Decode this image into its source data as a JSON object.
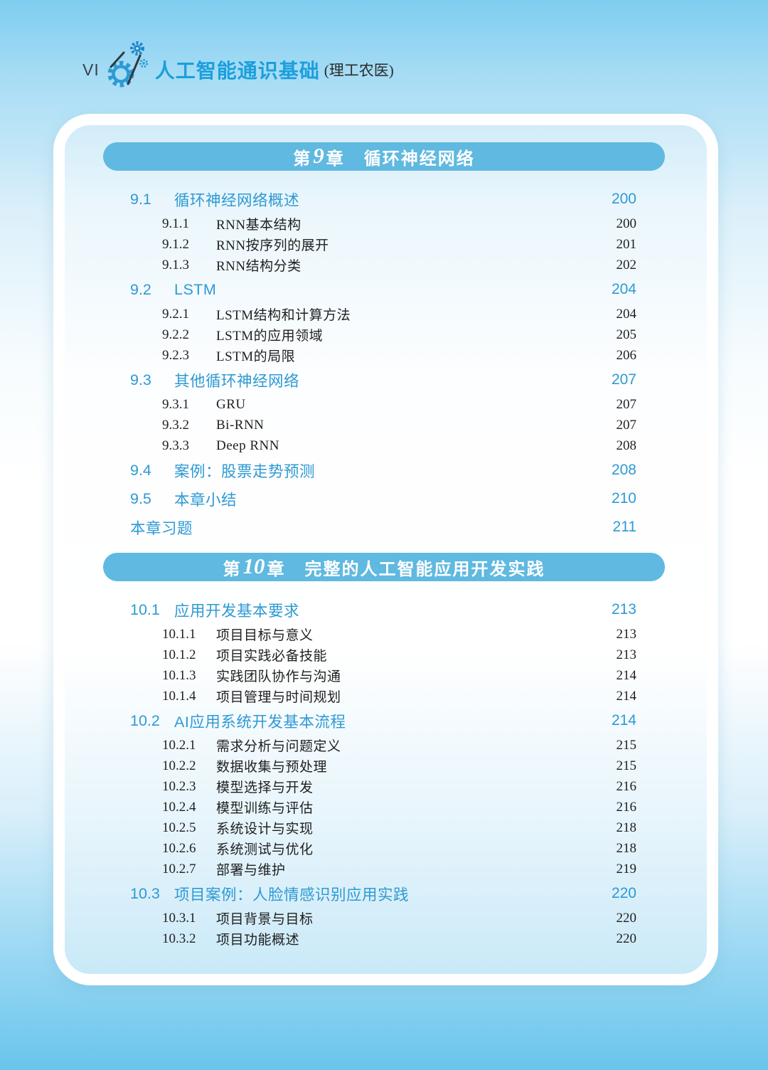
{
  "header": {
    "folio": "VI",
    "book_title": "人工智能通识基础",
    "book_subtitle": "(理工农医)",
    "logo": "gears-icon"
  },
  "colors": {
    "banner_blue": "#5FB9E0",
    "accent_blue": "#2E9AD3",
    "text_dark": "#1F1F1F",
    "header_title_blue": "#1C9FDC",
    "page_gradient_top": "#7ECDF0",
    "page_gradient_bottom": "#69C5EC",
    "card_border": "#FFFFFF"
  },
  "chapters": [
    {
      "banner": {
        "prefix": "第",
        "number": "9",
        "suffix": "章",
        "title": "循环神经网络"
      },
      "entries": [
        {
          "level": 1,
          "num": "9.1",
          "title": "循环神经网络概述",
          "page": "200"
        },
        {
          "level": 2,
          "num": "9.1.1",
          "title": "RNN基本结构",
          "page": "200"
        },
        {
          "level": 2,
          "num": "9.1.2",
          "title": "RNN按序列的展开",
          "page": "201"
        },
        {
          "level": 2,
          "num": "9.1.3",
          "title": "RNN结构分类",
          "page": "202"
        },
        {
          "level": 1,
          "num": "9.2",
          "title": "LSTM",
          "page": "204"
        },
        {
          "level": 2,
          "num": "9.2.1",
          "title": "LSTM结构和计算方法",
          "page": "204"
        },
        {
          "level": 2,
          "num": "9.2.2",
          "title": "LSTM的应用领域",
          "page": "205"
        },
        {
          "level": 2,
          "num": "9.2.3",
          "title": "LSTM的局限",
          "page": "206"
        },
        {
          "level": 1,
          "num": "9.3",
          "title": "其他循环神经网络",
          "page": "207"
        },
        {
          "level": 2,
          "num": "9.3.1",
          "title": "GRU",
          "page": "207"
        },
        {
          "level": 2,
          "num": "9.3.2",
          "title": "Bi-RNN",
          "page": "207"
        },
        {
          "level": 2,
          "num": "9.3.3",
          "title": "Deep RNN",
          "page": "208"
        },
        {
          "level": 1,
          "num": "9.4",
          "title": "案例：股票走势预测",
          "page": "208"
        },
        {
          "level": 1,
          "num": "9.5",
          "title": "本章小结",
          "page": "210"
        },
        {
          "level": 0,
          "num": "",
          "title": "本章习题",
          "page": "211"
        }
      ]
    },
    {
      "banner": {
        "prefix": "第",
        "number": "10",
        "suffix": "章",
        "title": "完整的人工智能应用开发实践"
      },
      "entries": [
        {
          "level": 1,
          "num": "10.1",
          "title": "应用开发基本要求",
          "page": "213"
        },
        {
          "level": 2,
          "num": "10.1.1",
          "title": "项目目标与意义",
          "page": "213"
        },
        {
          "level": 2,
          "num": "10.1.2",
          "title": "项目实践必备技能",
          "page": "213"
        },
        {
          "level": 2,
          "num": "10.1.3",
          "title": "实践团队协作与沟通",
          "page": "214"
        },
        {
          "level": 2,
          "num": "10.1.4",
          "title": "项目管理与时间规划",
          "page": "214"
        },
        {
          "level": 1,
          "num": "10.2",
          "title": "AI应用系统开发基本流程",
          "page": "214"
        },
        {
          "level": 2,
          "num": "10.2.1",
          "title": "需求分析与问题定义",
          "page": "215"
        },
        {
          "level": 2,
          "num": "10.2.2",
          "title": "数据收集与预处理",
          "page": "215"
        },
        {
          "level": 2,
          "num": "10.2.3",
          "title": "模型选择与开发",
          "page": "216"
        },
        {
          "level": 2,
          "num": "10.2.4",
          "title": "模型训练与评估",
          "page": "216"
        },
        {
          "level": 2,
          "num": "10.2.5",
          "title": "系统设计与实现",
          "page": "218"
        },
        {
          "level": 2,
          "num": "10.2.6",
          "title": "系统测试与优化",
          "page": "218"
        },
        {
          "level": 2,
          "num": "10.2.7",
          "title": "部署与维护",
          "page": "219"
        },
        {
          "level": 1,
          "num": "10.3",
          "title": "项目案例：人脸情感识别应用实践",
          "page": "220"
        },
        {
          "level": 2,
          "num": "10.3.1",
          "title": "项目背景与目标",
          "page": "220"
        },
        {
          "level": 2,
          "num": "10.3.2",
          "title": "项目功能概述",
          "page": "220"
        }
      ]
    }
  ]
}
